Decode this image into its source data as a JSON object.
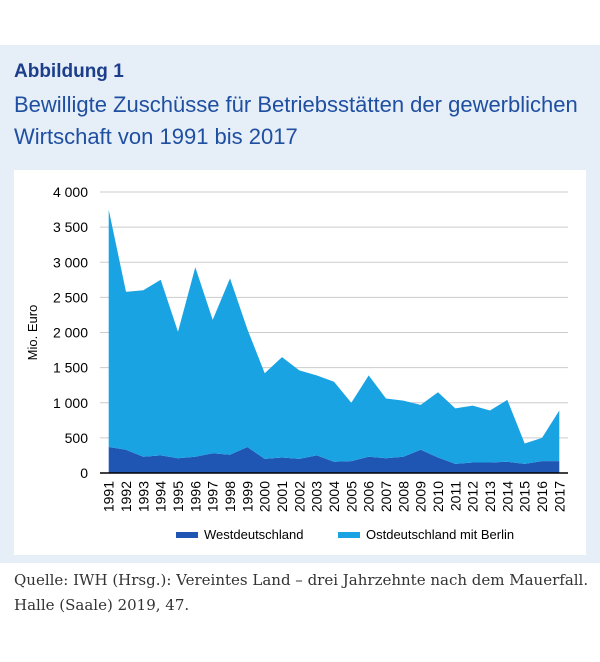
{
  "figure": {
    "label": "Abbildung 1",
    "title": "Bewilligte Zuschüsse für Betriebsstätten der gewerblichen Wirtschaft von 1991 bis 2017",
    "source": "Quelle: IWH (Hrsg.): Vereintes Land – drei Jahrzehnte nach dem Mauerfall. Halle (Saale) 2019, 47."
  },
  "colors": {
    "panel_bg": "#e6eef8",
    "west": "#1f55b3",
    "ost": "#1aa3e3",
    "grid": "#cccccc"
  },
  "chart_data": {
    "type": "area",
    "stacked": true,
    "ylabel": "Mio. Euro",
    "xlabel": "",
    "ylim": [
      0,
      4000
    ],
    "y_ticks": [
      {
        "value": 0,
        "label": "0"
      },
      {
        "value": 500,
        "label": "500"
      },
      {
        "value": 1000,
        "label": "1 000"
      },
      {
        "value": 1500,
        "label": "1 500"
      },
      {
        "value": 2000,
        "label": "2 000"
      },
      {
        "value": 2500,
        "label": "2 500"
      },
      {
        "value": 3000,
        "label": "3 000"
      },
      {
        "value": 3500,
        "label": "3 500"
      },
      {
        "value": 4000,
        "label": "4 000"
      }
    ],
    "grid": true,
    "legend_position": "bottom",
    "categories": [
      "1991",
      "1992",
      "1993",
      "1994",
      "1995",
      "1996",
      "1997",
      "1998",
      "1999",
      "2000",
      "2001",
      "2002",
      "2003",
      "2004",
      "2005",
      "2006",
      "2007",
      "2008",
      "2009",
      "2010",
      "2011",
      "2012",
      "2013",
      "2014",
      "2015",
      "2016",
      "2017"
    ],
    "series": [
      {
        "name": "Westdeutschland",
        "color": "#1f55b3",
        "values": [
          370,
          330,
          230,
          250,
          210,
          230,
          280,
          260,
          370,
          200,
          220,
          200,
          250,
          160,
          170,
          230,
          210,
          230,
          330,
          220,
          130,
          150,
          150,
          160,
          130,
          170,
          170
        ]
      },
      {
        "name": "Ostdeutschland mit Berlin",
        "color": "#1aa3e3",
        "values": [
          3380,
          2250,
          2370,
          2500,
          1800,
          2700,
          1900,
          2510,
          1680,
          1220,
          1430,
          1260,
          1140,
          1140,
          830,
          1160,
          850,
          800,
          640,
          930,
          790,
          810,
          740,
          880,
          290,
          330,
          720
        ]
      }
    ]
  }
}
